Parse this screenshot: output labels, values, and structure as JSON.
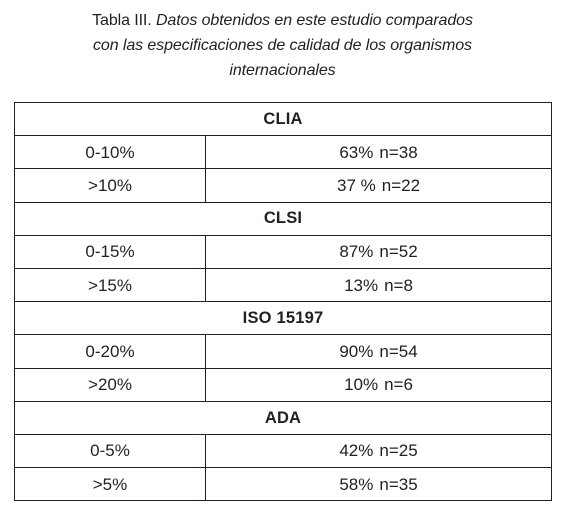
{
  "caption": {
    "label": "Tabla III. ",
    "title_line1": "Datos obtenidos en este estudio comparados",
    "title_line2": "con las especificaciones de calidad de los organismos",
    "title_line3": "internacionales"
  },
  "table": {
    "groups": [
      {
        "name": "CLIA",
        "rows": [
          {
            "range": "0-10%",
            "percent": "63%",
            "n": "n=38"
          },
          {
            "range": ">10%",
            "percent": "37 %",
            "n": "n=22"
          }
        ]
      },
      {
        "name": "CLSI",
        "rows": [
          {
            "range": "0-15%",
            "percent": "87%",
            "n": "n=52"
          },
          {
            "range": ">15%",
            "percent": "13%",
            "n": "n=8"
          }
        ]
      },
      {
        "name": "ISO 15197",
        "rows": [
          {
            "range": "0-20%",
            "percent": "90%",
            "n": "n=54"
          },
          {
            "range": ">20%",
            "percent": "10%",
            "n": "n=6"
          }
        ]
      },
      {
        "name": "ADA",
        "rows": [
          {
            "range": "0-5%",
            "percent": "42%",
            "n": "n=25"
          },
          {
            "range": ">5%",
            "percent": "58%",
            "n": "n=35"
          }
        ]
      }
    ]
  }
}
